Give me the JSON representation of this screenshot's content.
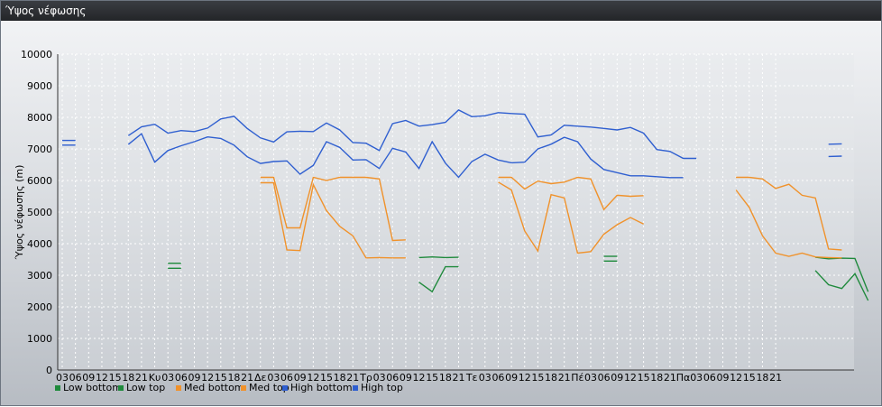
{
  "window": {
    "title": "Ύψος νέφωσης"
  },
  "chart_data": {
    "type": "line",
    "ylabel": "Ύψος νέφωσης (m)",
    "ylim": [
      0,
      10000
    ],
    "yticks": [
      0,
      1000,
      2000,
      3000,
      4000,
      5000,
      6000,
      7000,
      8000,
      9000,
      10000
    ],
    "grid": true,
    "legend_placement": "bottom-left",
    "x_tick_labels": [
      "03",
      "06",
      "09",
      "12",
      "15",
      "18",
      "21",
      "Κυ",
      "03",
      "06",
      "09",
      "12",
      "15",
      "18",
      "21",
      "Δε",
      "03",
      "06",
      "09",
      "12",
      "15",
      "18",
      "21",
      "Τρ",
      "03",
      "06",
      "09",
      "12",
      "15",
      "18",
      "21",
      "Τε",
      "03",
      "06",
      "09",
      "12",
      "15",
      "18",
      "21",
      "Πέ",
      "03",
      "06",
      "09",
      "12",
      "15",
      "18",
      "21",
      "Πα",
      "03",
      "06",
      "09",
      "12",
      "15",
      "18",
      "21"
    ],
    "series": [
      {
        "name": "Low bottom",
        "color": "#1f8a3c",
        "segments": [
          [
            [
              8,
              3220
            ],
            [
              9,
              3220
            ]
          ],
          [
            [
              27,
              2780
            ],
            [
              28,
              2480
            ],
            [
              29,
              3270
            ],
            [
              30,
              3270
            ]
          ],
          [
            [
              41,
              3450
            ],
            [
              42,
              3450
            ]
          ],
          [
            [
              57,
              3150
            ],
            [
              58,
              2700
            ],
            [
              59,
              2580
            ],
            [
              60,
              3050
            ],
            [
              61,
              2200
            ]
          ]
        ]
      },
      {
        "name": "Low top",
        "color": "#1f8a3c",
        "segments": [
          [
            [
              8,
              3380
            ],
            [
              9,
              3380
            ]
          ],
          [
            [
              27,
              3560
            ],
            [
              28,
              3580
            ],
            [
              29,
              3560
            ],
            [
              30,
              3570
            ]
          ],
          [
            [
              41,
              3600
            ],
            [
              42,
              3600
            ]
          ],
          [
            [
              57,
              3570
            ],
            [
              58,
              3520
            ],
            [
              59,
              3540
            ],
            [
              60,
              3530
            ],
            [
              61,
              2480
            ]
          ]
        ]
      },
      {
        "name": "Med bottom",
        "color": "#f0922b",
        "segments": [
          [
            [
              15,
              5930
            ],
            [
              16,
              5930
            ],
            [
              17,
              3800
            ],
            [
              18,
              3780
            ],
            [
              19,
              5870
            ],
            [
              20,
              5050
            ],
            [
              21,
              4550
            ],
            [
              22,
              4250
            ],
            [
              23,
              3550
            ],
            [
              24,
              3560
            ],
            [
              25,
              3550
            ],
            [
              26,
              3550
            ]
          ],
          [
            [
              33,
              5950
            ],
            [
              34,
              5700
            ],
            [
              35,
              4400
            ],
            [
              36,
              3770
            ],
            [
              37,
              5550
            ],
            [
              38,
              5450
            ],
            [
              39,
              3700
            ],
            [
              40,
              3750
            ],
            [
              41,
              4300
            ],
            [
              42,
              4600
            ],
            [
              43,
              4830
            ],
            [
              44,
              4620
            ]
          ],
          [
            [
              51,
              5700
            ],
            [
              52,
              5150
            ],
            [
              53,
              4250
            ],
            [
              54,
              3700
            ],
            [
              55,
              3600
            ],
            [
              56,
              3700
            ],
            [
              57,
              3580
            ],
            [
              58,
              3560
            ],
            [
              59,
              3550
            ]
          ]
        ]
      },
      {
        "name": "Med top",
        "color": "#f0922b",
        "segments": [
          [
            [
              15,
              6100
            ],
            [
              16,
              6100
            ],
            [
              17,
              4500
            ],
            [
              18,
              4500
            ],
            [
              19,
              6100
            ],
            [
              20,
              6000
            ],
            [
              21,
              6100
            ],
            [
              22,
              6100
            ],
            [
              23,
              6100
            ],
            [
              24,
              6050
            ],
            [
              25,
              4100
            ],
            [
              26,
              4120
            ]
          ],
          [
            [
              33,
              6100
            ],
            [
              34,
              6100
            ],
            [
              35,
              5730
            ],
            [
              36,
              5980
            ],
            [
              37,
              5900
            ],
            [
              38,
              5950
            ],
            [
              39,
              6100
            ],
            [
              40,
              6050
            ],
            [
              41,
              5080
            ],
            [
              42,
              5530
            ],
            [
              43,
              5500
            ],
            [
              44,
              5520
            ]
          ],
          [
            [
              51,
              6100
            ],
            [
              52,
              6100
            ],
            [
              53,
              6050
            ],
            [
              54,
              5750
            ],
            [
              55,
              5880
            ],
            [
              56,
              5530
            ],
            [
              57,
              5450
            ],
            [
              58,
              3830
            ],
            [
              59,
              3800
            ]
          ]
        ]
      },
      {
        "name": "High bottom",
        "color": "#2f5fd0",
        "segments": [
          [
            [
              0,
              7120
            ],
            [
              1,
              7120
            ]
          ],
          [
            [
              5,
              7140
            ],
            [
              6,
              7480
            ],
            [
              7,
              6580
            ],
            [
              8,
              6950
            ],
            [
              9,
              7100
            ],
            [
              10,
              7230
            ],
            [
              11,
              7380
            ],
            [
              12,
              7330
            ],
            [
              13,
              7120
            ],
            [
              14,
              6750
            ],
            [
              15,
              6540
            ],
            [
              16,
              6600
            ],
            [
              17,
              6620
            ],
            [
              18,
              6200
            ],
            [
              19,
              6480
            ],
            [
              20,
              7230
            ],
            [
              21,
              7050
            ],
            [
              22,
              6650
            ],
            [
              23,
              6660
            ],
            [
              24,
              6380
            ],
            [
              25,
              7020
            ],
            [
              26,
              6900
            ],
            [
              27,
              6380
            ],
            [
              28,
              7230
            ],
            [
              29,
              6550
            ],
            [
              30,
              6100
            ],
            [
              31,
              6600
            ],
            [
              32,
              6830
            ],
            [
              33,
              6650
            ],
            [
              34,
              6560
            ],
            [
              35,
              6580
            ],
            [
              36,
              7000
            ],
            [
              37,
              7150
            ],
            [
              38,
              7370
            ],
            [
              39,
              7230
            ],
            [
              40,
              6680
            ],
            [
              41,
              6350
            ],
            [
              42,
              6250
            ],
            [
              43,
              6150
            ],
            [
              44,
              6150
            ],
            [
              45,
              6120
            ],
            [
              46,
              6090
            ],
            [
              47,
              6090
            ]
          ],
          [
            [
              58,
              6760
            ],
            [
              59,
              6770
            ]
          ]
        ]
      },
      {
        "name": "High top",
        "color": "#2f5fd0",
        "segments": [
          [
            [
              0,
              7270
            ],
            [
              1,
              7270
            ]
          ],
          [
            [
              5,
              7420
            ],
            [
              6,
              7700
            ],
            [
              7,
              7780
            ],
            [
              8,
              7500
            ],
            [
              9,
              7580
            ],
            [
              10,
              7550
            ],
            [
              11,
              7660
            ],
            [
              12,
              7950
            ],
            [
              13,
              8030
            ],
            [
              14,
              7650
            ],
            [
              15,
              7350
            ],
            [
              16,
              7220
            ],
            [
              17,
              7540
            ],
            [
              18,
              7560
            ],
            [
              19,
              7550
            ],
            [
              20,
              7820
            ],
            [
              21,
              7600
            ],
            [
              22,
              7200
            ],
            [
              23,
              7180
            ],
            [
              24,
              6950
            ],
            [
              25,
              7800
            ],
            [
              26,
              7900
            ],
            [
              27,
              7720
            ],
            [
              28,
              7770
            ],
            [
              29,
              7840
            ],
            [
              30,
              8230
            ],
            [
              31,
              8020
            ],
            [
              32,
              8050
            ],
            [
              33,
              8150
            ],
            [
              34,
              8120
            ],
            [
              35,
              8100
            ],
            [
              36,
              7380
            ],
            [
              37,
              7440
            ],
            [
              38,
              7750
            ],
            [
              39,
              7720
            ],
            [
              40,
              7690
            ],
            [
              41,
              7650
            ],
            [
              42,
              7600
            ],
            [
              43,
              7680
            ],
            [
              44,
              7500
            ],
            [
              45,
              6980
            ],
            [
              46,
              6920
            ],
            [
              47,
              6700
            ],
            [
              48,
              6700
            ]
          ],
          [
            [
              58,
              7150
            ],
            [
              59,
              7160
            ]
          ]
        ]
      }
    ]
  }
}
